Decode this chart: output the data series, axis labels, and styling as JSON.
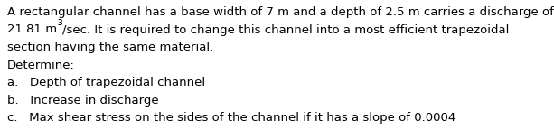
{
  "background_color": "#ffffff",
  "text_color": "#000000",
  "paragraph_line1": "A rectangular channel has a base width of 7 m and a depth of 2.5 m carries a discharge of",
  "paragraph_line2_part1": "21.81 m",
  "paragraph_line2_superscript": "3",
  "paragraph_line2_part2": "/sec. It is required to change this channel into a most efficient trapezoidal",
  "paragraph_line3": "section having the same material.",
  "determine_label": "Determine:",
  "item_a": "a.   Depth of trapezoidal channel",
  "item_b": "b.   Increase in discharge",
  "item_c": "c.   Max shear stress on the sides of the channel if it has a slope of 0.0004",
  "font_family": "DejaVu Sans",
  "fontsize": 9.5,
  "fig_width": 6.13,
  "fig_height": 1.54,
  "dpi": 100
}
